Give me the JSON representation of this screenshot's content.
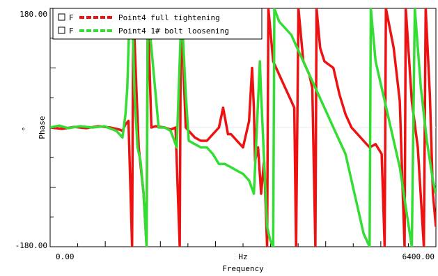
{
  "chart_data": {
    "type": "line",
    "title": "",
    "xlabel": "Frequency",
    "x_unit": "Hz",
    "ylabel": "Phase",
    "y_unit": "°",
    "xlim": [
      0,
      6400
    ],
    "ylim": [
      -180,
      180
    ],
    "x_tick_labels": [
      "0.00",
      "6400.00"
    ],
    "y_tick_labels": [
      "180.00",
      "-180.00"
    ],
    "legend_position": "top-left",
    "legend_checkbox_label": "F",
    "colors": {
      "series1": "#ee1111",
      "series2": "#33dd33",
      "zero_line": "#e8e8e8"
    },
    "series": [
      {
        "name": "Point4 full tightening",
        "color": "#ee1111",
        "points": [
          [
            0,
            0
          ],
          [
            200,
            -2
          ],
          [
            400,
            1
          ],
          [
            600,
            -1
          ],
          [
            800,
            2
          ],
          [
            1000,
            0
          ],
          [
            1150,
            -3
          ],
          [
            1200,
            -5
          ],
          [
            1250,
            5
          ],
          [
            1300,
            10
          ],
          [
            1360,
            -180
          ],
          [
            1380,
            180
          ],
          [
            1430,
            60
          ],
          [
            1470,
            -30
          ],
          [
            1550,
            -100
          ],
          [
            1600,
            -180
          ],
          [
            1620,
            180
          ],
          [
            1680,
            0
          ],
          [
            1750,
            2
          ],
          [
            1900,
            0
          ],
          [
            2000,
            -3
          ],
          [
            2080,
            0
          ],
          [
            2150,
            -180
          ],
          [
            2170,
            180
          ],
          [
            2250,
            0
          ],
          [
            2300,
            -5
          ],
          [
            2400,
            -15
          ],
          [
            2500,
            -20
          ],
          [
            2600,
            -20
          ],
          [
            2700,
            -10
          ],
          [
            2800,
            0
          ],
          [
            2870,
            30
          ],
          [
            2950,
            -10
          ],
          [
            3000,
            -10
          ],
          [
            3100,
            -20
          ],
          [
            3150,
            -25
          ],
          [
            3200,
            -30
          ],
          [
            3300,
            10
          ],
          [
            3350,
            90
          ],
          [
            3380,
            30
          ],
          [
            3400,
            -50
          ],
          [
            3450,
            -30
          ],
          [
            3500,
            -100
          ],
          [
            3550,
            -50
          ],
          [
            3600,
            -180
          ],
          [
            3620,
            180
          ],
          [
            3700,
            100
          ],
          [
            3800,
            80
          ],
          [
            3900,
            60
          ],
          [
            4000,
            40
          ],
          [
            4050,
            30
          ],
          [
            4080,
            -180
          ],
          [
            4120,
            180
          ],
          [
            4200,
            100
          ],
          [
            4300,
            80
          ],
          [
            4350,
            60
          ],
          [
            4400,
            -180
          ],
          [
            4420,
            180
          ],
          [
            4480,
            120
          ],
          [
            4550,
            100
          ],
          [
            4700,
            90
          ],
          [
            4800,
            50
          ],
          [
            4900,
            20
          ],
          [
            5000,
            0
          ],
          [
            5100,
            -10
          ],
          [
            5200,
            -20
          ],
          [
            5300,
            -30
          ],
          [
            5400,
            -25
          ],
          [
            5500,
            -40
          ],
          [
            5550,
            -180
          ],
          [
            5570,
            180
          ],
          [
            5700,
            120
          ],
          [
            5800,
            40
          ],
          [
            5850,
            -100
          ],
          [
            5880,
            -180
          ],
          [
            5900,
            180
          ],
          [
            6000,
            40
          ],
          [
            6100,
            -30
          ],
          [
            6200,
            -180
          ],
          [
            6230,
            180
          ],
          [
            6300,
            50
          ],
          [
            6350,
            -100
          ],
          [
            6400,
            -150
          ]
        ]
      },
      {
        "name": "Point4 1# bolt loosening",
        "color": "#33dd33",
        "points": [
          [
            0,
            0
          ],
          [
            150,
            3
          ],
          [
            300,
            -1
          ],
          [
            500,
            2
          ],
          [
            700,
            0
          ],
          [
            900,
            2
          ],
          [
            1100,
            -5
          ],
          [
            1200,
            -15
          ],
          [
            1250,
            20
          ],
          [
            1280,
            60
          ],
          [
            1320,
            180
          ],
          [
            1370,
            150
          ],
          [
            1400,
            50
          ],
          [
            1450,
            -30
          ],
          [
            1500,
            -50
          ],
          [
            1550,
            -100
          ],
          [
            1600,
            -180
          ],
          [
            1620,
            180
          ],
          [
            1700,
            100
          ],
          [
            1800,
            0
          ],
          [
            1900,
            0
          ],
          [
            2000,
            -5
          ],
          [
            2100,
            -30
          ],
          [
            2180,
            180
          ],
          [
            2250,
            50
          ],
          [
            2300,
            -20
          ],
          [
            2400,
            -25
          ],
          [
            2500,
            -30
          ],
          [
            2600,
            -30
          ],
          [
            2700,
            -40
          ],
          [
            2800,
            -55
          ],
          [
            2900,
            -55
          ],
          [
            3000,
            -60
          ],
          [
            3100,
            -65
          ],
          [
            3200,
            -70
          ],
          [
            3300,
            -80
          ],
          [
            3380,
            -100
          ],
          [
            3430,
            0
          ],
          [
            3480,
            100
          ],
          [
            3500,
            50
          ],
          [
            3600,
            -150
          ],
          [
            3650,
            -170
          ],
          [
            3700,
            -180
          ],
          [
            3720,
            180
          ],
          [
            3800,
            160
          ],
          [
            3900,
            150
          ],
          [
            4000,
            140
          ],
          [
            4100,
            120
          ],
          [
            4200,
            100
          ],
          [
            4300,
            80
          ],
          [
            4400,
            60
          ],
          [
            4500,
            40
          ],
          [
            4600,
            20
          ],
          [
            4700,
            0
          ],
          [
            4800,
            -20
          ],
          [
            4900,
            -40
          ],
          [
            5000,
            -80
          ],
          [
            5100,
            -120
          ],
          [
            5200,
            -160
          ],
          [
            5300,
            -180
          ],
          [
            5320,
            180
          ],
          [
            5400,
            100
          ],
          [
            5500,
            60
          ],
          [
            5600,
            20
          ],
          [
            5700,
            -20
          ],
          [
            5800,
            -60
          ],
          [
            5900,
            -120
          ],
          [
            6000,
            -180
          ],
          [
            6050,
            180
          ],
          [
            6150,
            60
          ],
          [
            6250,
            -20
          ],
          [
            6350,
            -80
          ],
          [
            6400,
            -100
          ]
        ]
      }
    ]
  }
}
